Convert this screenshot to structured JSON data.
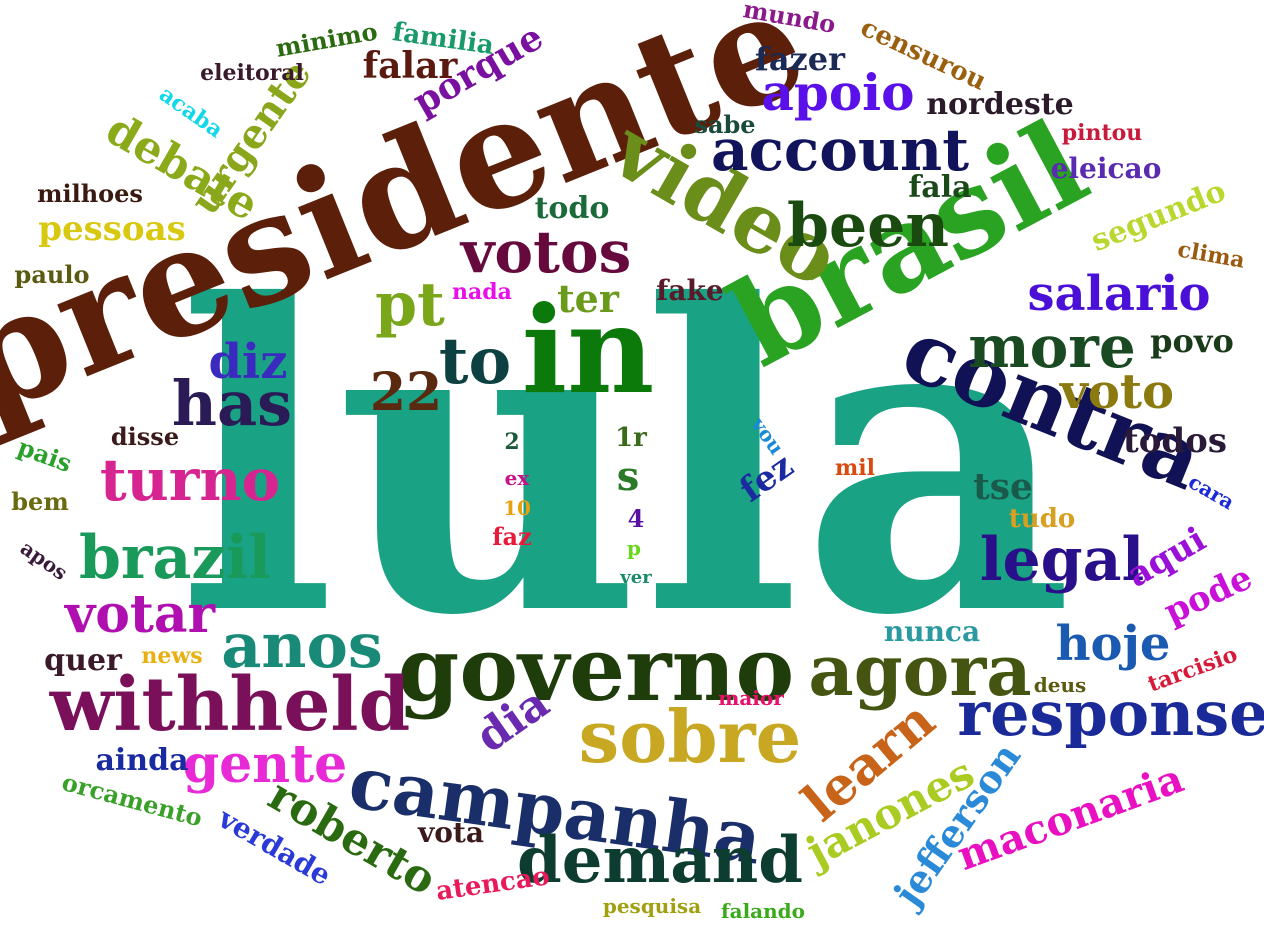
{
  "words": [
    {
      "text": "lula",
      "color": "#1aa285"
    },
    {
      "text": "presidente",
      "color": "#5c1f0a"
    },
    {
      "text": "in",
      "color": "#0b7a0b"
    },
    {
      "text": "brasil",
      "color": "#2aa322"
    },
    {
      "text": "video",
      "color": "#6b8e1a"
    },
    {
      "text": "contra",
      "color": "#111155"
    },
    {
      "text": "governo",
      "color": "#1f3d0a"
    },
    {
      "text": "withheld",
      "color": "#7a0f5a"
    },
    {
      "text": "campanha",
      "color": "#1a2f6a"
    },
    {
      "text": "sobre",
      "color": "#c8a822"
    },
    {
      "text": "agora",
      "color": "#445511"
    },
    {
      "text": "response",
      "color": "#1a2a99"
    },
    {
      "text": "demand",
      "color": "#0d3d30"
    },
    {
      "text": "account",
      "color": "#11145a"
    },
    {
      "text": "been",
      "color": "#1a4a10"
    },
    {
      "text": "votos",
      "color": "#660a3d"
    },
    {
      "text": "anos",
      "color": "#1a8a78"
    },
    {
      "text": "brazil",
      "color": "#1a9a5a"
    },
    {
      "text": "turno",
      "color": "#d62590"
    },
    {
      "text": "has",
      "color": "#2a1a55"
    },
    {
      "text": "more",
      "color": "#1a4a22"
    },
    {
      "text": "legal",
      "color": "#2a0f8a"
    },
    {
      "text": "to",
      "color": "#0d4040"
    },
    {
      "text": "pt",
      "color": "#7aa61a"
    },
    {
      "text": "22",
      "color": "#5a2a10"
    },
    {
      "text": "diz",
      "color": "#3a2ac0"
    },
    {
      "text": "votar",
      "color": "#b00fb0"
    },
    {
      "text": "gente",
      "color": "#e82ad6"
    },
    {
      "text": "learn",
      "color": "#c8641a"
    },
    {
      "text": "salario",
      "color": "#4a10d8"
    },
    {
      "text": "voto",
      "color": "#8a7a10"
    },
    {
      "text": "apoio",
      "color": "#5a10e8"
    },
    {
      "text": "hoje",
      "color": "#1a5ab0"
    },
    {
      "text": "debate",
      "color": "#8aaa1a"
    },
    {
      "text": "roberto",
      "color": "#2a6a10"
    },
    {
      "text": "janones",
      "color": "#aacc22"
    },
    {
      "text": "jefferson",
      "color": "#2a8ad8"
    },
    {
      "text": "maconaria",
      "color": "#e810c0"
    },
    {
      "text": "dia",
      "color": "#6a2ab0"
    },
    {
      "text": "urgente",
      "color": "#8aa61a"
    },
    {
      "text": "porque",
      "color": "#7a10a0"
    },
    {
      "text": "falar",
      "color": "#5a1a10"
    },
    {
      "text": "fazer",
      "color": "#1a2a55"
    },
    {
      "text": "nordeste",
      "color": "#2a1a2a"
    },
    {
      "text": "pessoas",
      "color": "#d8c810"
    },
    {
      "text": "ter",
      "color": "#6a9a1a"
    },
    {
      "text": "s",
      "color": "#2a7a2a"
    },
    {
      "text": "fez",
      "color": "#1a2aa0"
    },
    {
      "text": "tse",
      "color": "#1a5a4a"
    },
    {
      "text": "todos",
      "color": "#2a1a3a"
    },
    {
      "text": "povo",
      "color": "#1a3a1a"
    },
    {
      "text": "aqui",
      "color": "#9a10d8"
    },
    {
      "text": "pode",
      "color": "#c810d8"
    },
    {
      "text": "segundo",
      "color": "#b8d830"
    },
    {
      "text": "nunca",
      "color": "#2a9aa0"
    },
    {
      "text": "verdade",
      "color": "#2a3ad8"
    },
    {
      "text": "vota",
      "color": "#3a1a1a"
    },
    {
      "text": "atencao",
      "color": "#e81a5a"
    },
    {
      "text": "orcamento",
      "color": "#3aa02a"
    },
    {
      "text": "ainda",
      "color": "#1a2aa0"
    },
    {
      "text": "quer",
      "color": "#3a1a2a"
    },
    {
      "text": "news",
      "color": "#e8b010"
    },
    {
      "text": "fake",
      "color": "#5a1a2a"
    },
    {
      "text": "todo",
      "color": "#1a6a3a"
    },
    {
      "text": "nada",
      "color": "#e810e8"
    },
    {
      "text": "fala",
      "color": "#1a4a1a"
    },
    {
      "text": "eleicao",
      "color": "#5a2ab0"
    },
    {
      "text": "sabe",
      "color": "#1a4a3a"
    },
    {
      "text": "censurou",
      "color": "#9a6010"
    },
    {
      "text": "mundo",
      "color": "#8a1a8a"
    },
    {
      "text": "familia",
      "color": "#1a9a6a"
    },
    {
      "text": "minimo",
      "color": "#2a6a10"
    },
    {
      "text": "eleitoral",
      "color": "#3a1a2a"
    },
    {
      "text": "acaba",
      "color": "#10d8e8"
    },
    {
      "text": "milhoes",
      "color": "#3a1a10"
    },
    {
      "text": "paulo",
      "color": "#5a5a10"
    },
    {
      "text": "disse",
      "color": "#3a1a1a"
    },
    {
      "text": "pais",
      "color": "#2aa02a"
    },
    {
      "text": "bem",
      "color": "#6a6a10"
    },
    {
      "text": "apos",
      "color": "#3a1a3a"
    },
    {
      "text": "pintou",
      "color": "#c81a3a"
    },
    {
      "text": "clima",
      "color": "#9a5a10"
    },
    {
      "text": "vou",
      "color": "#1a8ad8"
    },
    {
      "text": "mil",
      "color": "#d84a10"
    },
    {
      "text": "cara",
      "color": "#1a2ad8"
    },
    {
      "text": "tudo",
      "color": "#d8a020"
    },
    {
      "text": "deus",
      "color": "#5a5a10"
    },
    {
      "text": "tarcisio",
      "color": "#d81a3a"
    },
    {
      "text": "maior",
      "color": "#e8106a"
    },
    {
      "text": "pesquisa",
      "color": "#a0a010"
    },
    {
      "text": "falando",
      "color": "#3aaa1a"
    },
    {
      "text": "2",
      "color": "#1a5a3a"
    },
    {
      "text": "1r",
      "color": "#3a6a1a"
    },
    {
      "text": "ex",
      "color": "#c8108a"
    },
    {
      "text": "10",
      "color": "#e8a010"
    },
    {
      "text": "faz",
      "color": "#e81a3a"
    },
    {
      "text": "4",
      "color": "#5a10a0"
    },
    {
      "text": "p",
      "color": "#6ad81a"
    },
    {
      "text": "ver",
      "color": "#1a8a6a"
    }
  ]
}
